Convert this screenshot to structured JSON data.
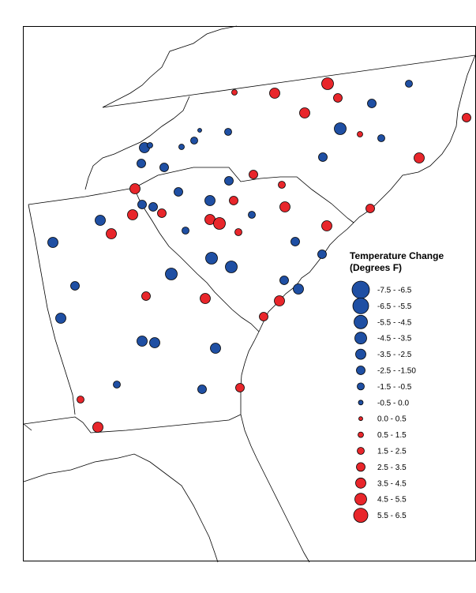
{
  "legend": {
    "title_line1": "Temperature Change",
    "title_line2": "(Degrees F)",
    "items": [
      {
        "label": "-7.5 - -6.5",
        "color": "#1f4fa3"
      },
      {
        "label": "-6.5 - -5.5",
        "color": "#1f4fa3"
      },
      {
        "label": "-5.5 - -4.5",
        "color": "#1f4fa3"
      },
      {
        "label": "-4.5 - -3.5",
        "color": "#1f4fa3"
      },
      {
        "label": "-3.5 - -2.5",
        "color": "#1f4fa3"
      },
      {
        "label": "-2.5 - -1.50",
        "color": "#1f4fa3"
      },
      {
        "label": "-1.5 - -0.5",
        "color": "#1f4fa3"
      },
      {
        "label": "-0.5 - 0.0",
        "color": "#1f4fa3"
      },
      {
        "label": "0.0 - 0.5",
        "color": "#e8262b"
      },
      {
        "label": "0.5 - 1.5",
        "color": "#e8262b"
      },
      {
        "label": "1.5 - 2.5",
        "color": "#e8262b"
      },
      {
        "label": "2.5 - 3.5",
        "color": "#e8262b"
      },
      {
        "label": "3.5 - 4.5",
        "color": "#e8262b"
      },
      {
        "label": "4.5 - 5.5",
        "color": "#e8262b"
      },
      {
        "label": "5.5 - 6.5",
        "color": "#e8262b"
      }
    ]
  },
  "colors": {
    "cooling": "#1f4fa3",
    "warming": "#e8262b",
    "outline": "#000000"
  },
  "stations": [
    {
      "cls": 12
    },
    {
      "cls": 9
    },
    {
      "cls": 9
    },
    {
      "cls": 11
    },
    {
      "cls": 10
    },
    {
      "cls": 11
    },
    {
      "cls": 8
    },
    {
      "cls": 10
    },
    {
      "cls": 9
    },
    {
      "cls": 12
    },
    {
      "cls": 13
    },
    {
      "cls": 11
    },
    {
      "cls": 12
    },
    {
      "cls": 11
    },
    {
      "cls": 13
    },
    {
      "cls": 9
    },
    {
      "cls": 10
    },
    {
      "cls": 11
    },
    {
      "cls": 10
    },
    {
      "cls": 11
    },
    {
      "cls": 12
    },
    {
      "cls": 11
    },
    {
      "cls": 12
    },
    {
      "cls": 11
    },
    {
      "cls": 11
    },
    {
      "cls": 10
    },
    {
      "cls": 12
    },
    {
      "cls": 11
    },
    {
      "cls": 11
    },
    {
      "cls": 11
    },
    {
      "cls": 11
    },
    {
      "cls": 12
    },
    {
      "cls": 12
    },
    {
      "cls": 11
    },
    {
      "cls": 12
    },
    {
      "cls": 10
    },
    {
      "cls": 12
    },
    {
      "cls": 13
    },
    {
      "cls": 10
    },
    {
      "cls": 10
    },
    {
      "cls": 11
    },
    {
      "cls": 11
    },
    {
      "cls": 13
    },
    {
      "cls": 13
    },
    {
      "cls": 12
    },
    {
      "cls": 12
    },
    {
      "cls": 12
    },
    {
      "cls": 11
    },
    {
      "cls": 13
    },
    {
      "cls": 11
    },
    {
      "cls": 11
    },
    {
      "cls": 12
    },
    {
      "cls": 12
    },
    {
      "cls": 12
    },
    {
      "cls": 11
    },
    {
      "cls": 12
    },
    {
      "cls": 12
    },
    {
      "cls": 12
    },
    {
      "cls": 12
    },
    {
      "cls": 10
    },
    {
      "cls": 11
    },
    {
      "cls": 11
    },
    {
      "cls": 10
    },
    {
      "cls": 12
    },
    {
      "cls": 11
    },
    {
      "cls": 10
    },
    {
      "cls": 11
    },
    {
      "cls": 11
    },
    {
      "cls": 12
    },
    {
      "cls": 10
    },
    {
      "cls": 11
    },
    {
      "cls": 11
    }
  ]
}
